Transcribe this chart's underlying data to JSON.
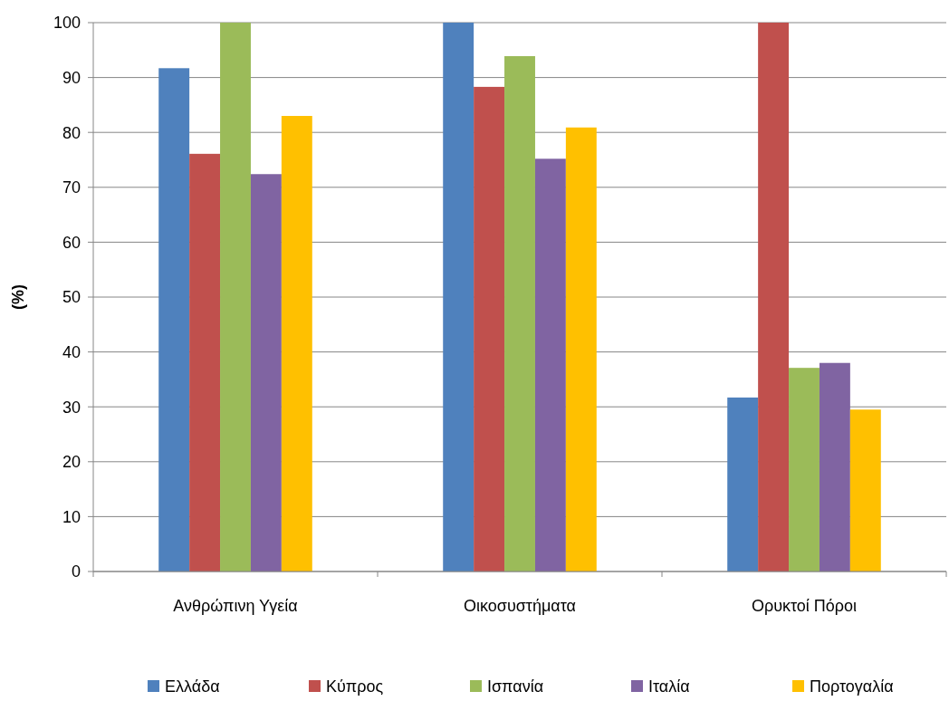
{
  "chart_data": {
    "type": "bar",
    "ylabel": "(%)",
    "categories": [
      "Ανθρώπινη Υγεία",
      "Οικοσυστήματα",
      "Ορυκτοί Πόροι"
    ],
    "series": [
      {
        "name": "Ελλάδα",
        "color": "#4f81bd",
        "values": [
          91.7,
          100,
          31.7
        ]
      },
      {
        "name": "Κύπρος",
        "color": "#c0504d",
        "values": [
          76.1,
          88.3,
          100
        ]
      },
      {
        "name": "Ισπανία",
        "color": "#9bbb59",
        "values": [
          100,
          93.9,
          37.1
        ]
      },
      {
        "name": "Ιταλία",
        "color": "#8064a2",
        "values": [
          72.4,
          75.2,
          38.0
        ]
      },
      {
        "name": "Πορτογαλία",
        "color": "#ffc000",
        "values": [
          83.0,
          80.9,
          29.5
        ]
      }
    ],
    "ylim": [
      0,
      100
    ],
    "yticks": [
      0,
      10,
      20,
      30,
      40,
      50,
      60,
      70,
      80,
      90,
      100
    ],
    "grid": "y",
    "legend": "bottom"
  }
}
